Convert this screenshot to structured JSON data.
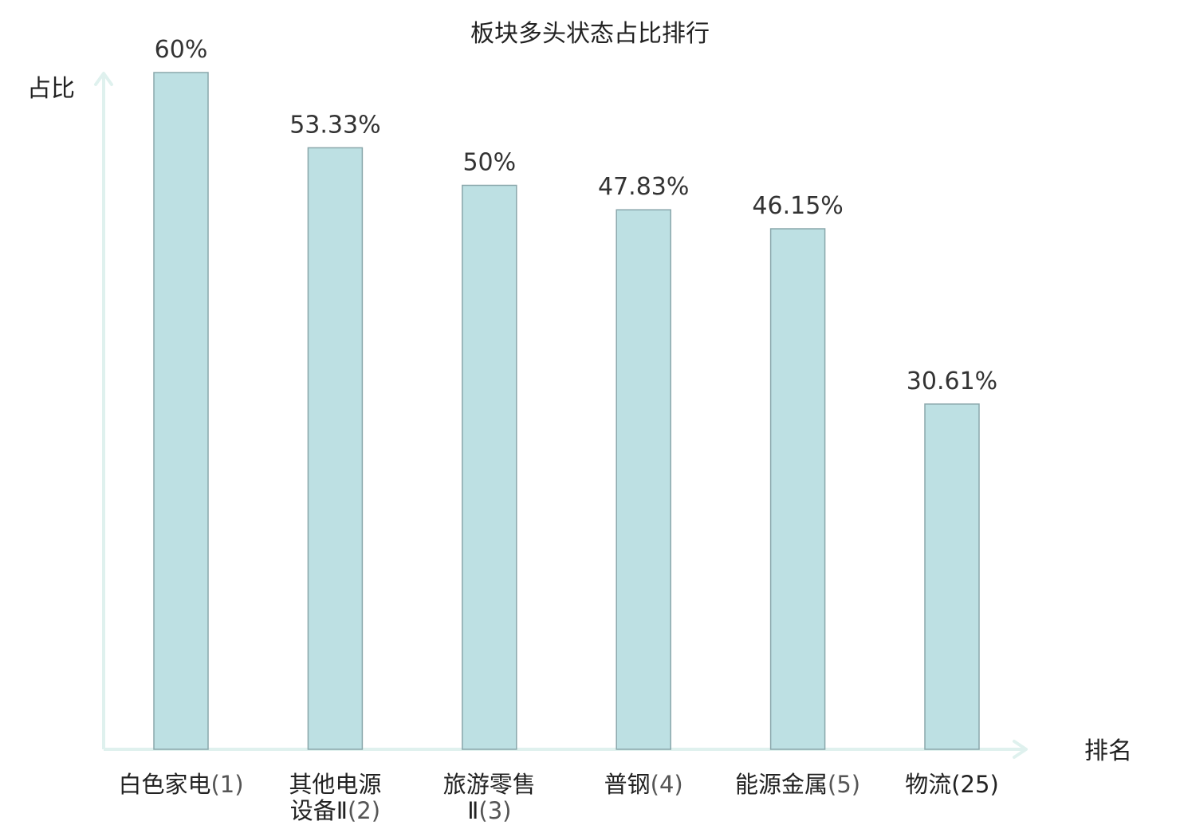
{
  "chart_data": {
    "type": "bar",
    "title": "板块多头状态占比排行",
    "ylabel": "占比",
    "xlabel": "排名",
    "ylim": [
      0,
      60
    ],
    "grid": false,
    "categories": [
      {
        "name": "白色家电",
        "rank": "(1)",
        "highlight": false
      },
      {
        "name": "其他电源设备Ⅱ",
        "rank": "(2)",
        "highlight": false
      },
      {
        "name": "旅游零售Ⅱ",
        "rank": "(3)",
        "highlight": false
      },
      {
        "name": "普钢",
        "rank": "(4)",
        "highlight": false
      },
      {
        "name": "能源金属",
        "rank": "(5)",
        "highlight": false
      },
      {
        "name": "物流",
        "rank": "(25)",
        "highlight": true
      }
    ],
    "values": [
      60,
      53.33,
      50,
      47.83,
      46.15,
      30.61
    ],
    "value_labels": [
      "60%",
      "53.33%",
      "50%",
      "47.83%",
      "46.15%",
      "30.61%"
    ],
    "colors": {
      "bar_fill": "#bde0e3",
      "bar_stroke": "#8aa7ab",
      "axis": "#dff1ee",
      "highlight_text": "#e8141c"
    }
  }
}
